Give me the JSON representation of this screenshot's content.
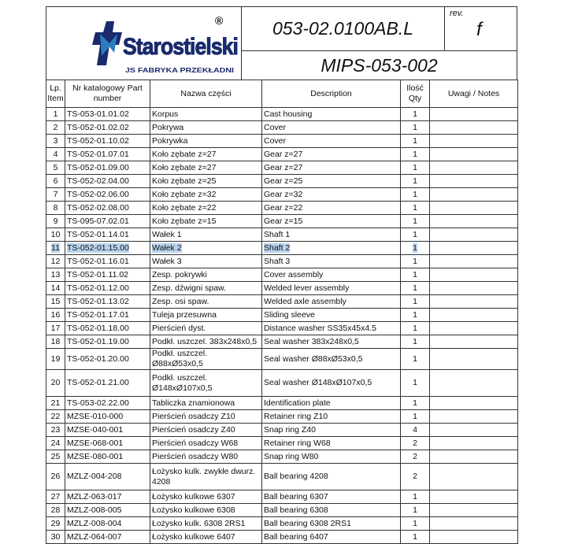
{
  "header": {
    "logo_text": "Starostielski",
    "logo_subtext": "JS FABRYKA PRZEKŁADNI",
    "registered_mark": "®",
    "document_code": "053-02.0100AB.L",
    "rev_label": "rev.",
    "rev_value": "f",
    "mips_code": "MIPS-053-002",
    "brand_color": "#1a2a6c",
    "accent_color": "#2b7bbf"
  },
  "columns": {
    "lp": "Lp. Item",
    "part": "Nr katalogowy Part number",
    "name": "Nazwa części",
    "desc": "Description",
    "qty": "Ilość Qty",
    "notes": "Uwagi / Notes"
  },
  "rows": [
    {
      "lp": "1",
      "part": "TS-053-01.01.02",
      "name": "Korpus",
      "desc": "Cast housing",
      "qty": "1"
    },
    {
      "lp": "2",
      "part": "TS-052-01.02.02",
      "name": "Pokrywa",
      "desc": "Cover",
      "qty": "1"
    },
    {
      "lp": "3",
      "part": "TS-052-01.10.02",
      "name": "Pokrywka",
      "desc": "Cover",
      "qty": "1"
    },
    {
      "lp": "4",
      "part": "TS-052-01.07.01",
      "name": "Koło zębate z=27",
      "desc": "Gear z=27",
      "qty": "1"
    },
    {
      "lp": "5",
      "part": "TS-052-01.09.00",
      "name": "Koło zębate z=27",
      "desc": "Gear z=27",
      "qty": "1"
    },
    {
      "lp": "6",
      "part": "TS-052-02.04.00",
      "name": "Koło zębate z=25",
      "desc": "Gear z=25",
      "qty": "1"
    },
    {
      "lp": "7",
      "part": "TS-052-02.06.00",
      "name": "Koło zębate z=32",
      "desc": "Gear z=32",
      "qty": "1"
    },
    {
      "lp": "8",
      "part": "TS-052-02.08.00",
      "name": "Koło zębate z=22",
      "desc": "Gear z=22",
      "qty": "1"
    },
    {
      "lp": "9",
      "part": "TS-095-07.02.01",
      "name": "Koło zębate z=15",
      "desc": "Gear z=15",
      "qty": "1"
    },
    {
      "lp": "10",
      "part": "TS-052-01.14.01",
      "name": "Wałek 1",
      "desc": "Shaft 1",
      "qty": "1"
    },
    {
      "lp": "11",
      "part": "TS-052-01.15.00",
      "name": "Wałek 2",
      "desc": "Shaft 2",
      "qty": "1",
      "selected": true
    },
    {
      "lp": "12",
      "part": "TS-052-01.16.01",
      "name": "Wałek 3",
      "desc": "Shaft 3",
      "qty": "1"
    },
    {
      "lp": "13",
      "part": "TS-052-01.11.02",
      "name": "Zesp. pokrywki",
      "desc": "Cover assembly",
      "qty": "1"
    },
    {
      "lp": "14",
      "part": "TS-052-01.12.00",
      "name": "Zesp. dźwigni spaw.",
      "desc": "Welded lever assembly",
      "qty": "1"
    },
    {
      "lp": "15",
      "part": "TS-052-01.13.02",
      "name": "Zesp. osi spaw.",
      "desc": "Welded axle assembly",
      "qty": "1"
    },
    {
      "lp": "16",
      "part": "TS-052-01.17.01",
      "name": "Tuleja przesuwna",
      "desc": "Sliding sleeve",
      "qty": "1"
    },
    {
      "lp": "17",
      "part": "TS-052-01.18.00",
      "name": "Pierścień dyst.",
      "desc": "Distance washer SS35x45x4.5",
      "qty": "1"
    },
    {
      "lp": "18",
      "part": "TS-052-01.19.00",
      "name": "Podkł. uszczel. 383x248x0,5",
      "desc": "Seal washer 383x248x0,5",
      "qty": "1"
    },
    {
      "lp": "19",
      "part": "TS-052-01.20.00",
      "name": "Podkł. uszczel. Ø88xØ53x0,5",
      "desc": "Seal washer Ø88xØ53x0,5",
      "qty": "1"
    },
    {
      "lp": "20",
      "part": "TS-052-01.21.00",
      "name": "Podkł. uszczel. Ø148xØ107x0,5",
      "desc": "Seal washer Ø148xØ107x0,5",
      "qty": "1",
      "tall": true
    },
    {
      "lp": "21",
      "part": "TS-053-02.22.00",
      "name": "Tabliczka znamionowa",
      "desc": "Identification plate",
      "qty": "1"
    },
    {
      "lp": "22",
      "part": "MZSE-010-000",
      "name": "Pierścień osadczy Z10",
      "desc": "Retainer ring Z10",
      "qty": "1"
    },
    {
      "lp": "23",
      "part": "MZSE-040-001",
      "name": "Pierścień osadczy Z40",
      "desc": "Snap ring Z40",
      "qty": "4"
    },
    {
      "lp": "24",
      "part": "MZSE-068-001",
      "name": "Pierścień osadczy W68",
      "desc": "Retainer ring W68",
      "qty": "2"
    },
    {
      "lp": "25",
      "part": "MZSE-080-001",
      "name": "Pierścień osadczy W80",
      "desc": "Snap ring W80",
      "qty": "2"
    },
    {
      "lp": "26",
      "part": "MZLZ-004-208",
      "name": "Łożysko kulk. zwykłe dwurz. 4208",
      "desc": "Ball bearing 4208",
      "qty": "2",
      "tall": true
    },
    {
      "lp": "27",
      "part": "MZLZ-063-017",
      "name": "Łożysko kulkowe 6307",
      "desc": "Ball bearing 6307",
      "qty": "1"
    },
    {
      "lp": "28",
      "part": "MZLZ-008-005",
      "name": "Łożysko kulkowe  6308",
      "desc": "Ball bearing 6308",
      "qty": "1"
    },
    {
      "lp": "29",
      "part": "MZLZ-008-004",
      "name": "Łożysko kulk.  6308 2RS1",
      "desc": "Ball bearing 6308 2RS1",
      "qty": "1"
    },
    {
      "lp": "30",
      "part": "MZLZ-064-007",
      "name": "Łożysko kulkowe 6407",
      "desc": "Ball bearing 6407",
      "qty": "1"
    }
  ]
}
